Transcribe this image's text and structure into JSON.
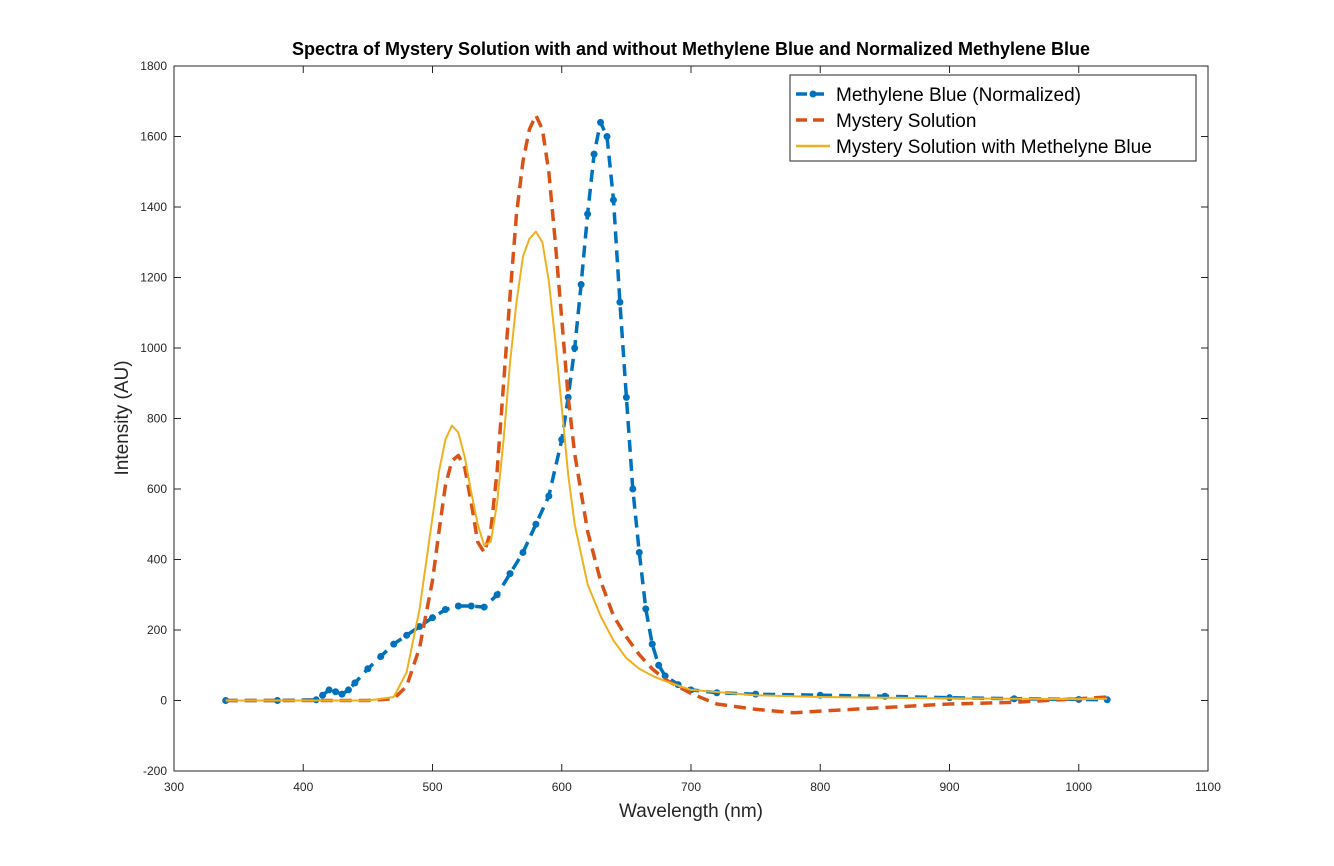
{
  "chart_data": {
    "type": "line",
    "title": "Spectra of Mystery Solution with and without Methylene Blue and Normalized Methylene Blue",
    "xlabel": "Wavelength (nm)",
    "ylabel": "Intensity (AU)",
    "xlim": [
      300,
      1100
    ],
    "ylim": [
      -200,
      1800
    ],
    "xticks": [
      "300",
      "400",
      "500",
      "600",
      "700",
      "800",
      "900",
      "1000",
      "1100"
    ],
    "yticks": [
      "-200",
      "0",
      "200",
      "400",
      "600",
      "800",
      "1000",
      "1200",
      "1400",
      "1600",
      "1800"
    ],
    "grid": false,
    "legend_position": "top-right",
    "series": [
      {
        "name": "Methylene Blue (Normalized)",
        "color": "#0072BD",
        "style": "dashed-dot-markers",
        "x": [
          340,
          380,
          410,
          415,
          420,
          425,
          430,
          435,
          440,
          450,
          460,
          470,
          480,
          490,
          500,
          510,
          520,
          530,
          540,
          550,
          560,
          570,
          580,
          590,
          600,
          605,
          610,
          615,
          620,
          625,
          630,
          635,
          640,
          645,
          650,
          655,
          660,
          665,
          670,
          675,
          680,
          690,
          700,
          720,
          750,
          800,
          850,
          900,
          950,
          1000,
          1022
        ],
        "y": [
          0,
          0,
          2,
          15,
          30,
          25,
          18,
          30,
          50,
          90,
          125,
          160,
          185,
          210,
          235,
          258,
          268,
          268,
          265,
          300,
          360,
          420,
          500,
          580,
          740,
          860,
          1000,
          1180,
          1380,
          1550,
          1640,
          1600,
          1420,
          1130,
          860,
          600,
          420,
          260,
          160,
          100,
          70,
          45,
          30,
          22,
          18,
          15,
          12,
          8,
          5,
          3,
          2
        ]
      },
      {
        "name": "Mystery Solution",
        "color": "#D95319",
        "style": "dashed",
        "x": [
          340,
          400,
          450,
          470,
          480,
          490,
          500,
          505,
          510,
          515,
          520,
          525,
          530,
          535,
          540,
          545,
          550,
          555,
          560,
          565,
          570,
          575,
          580,
          585,
          590,
          595,
          600,
          605,
          610,
          620,
          630,
          640,
          650,
          660,
          670,
          680,
          700,
          720,
          750,
          780,
          800,
          850,
          900,
          950,
          1000,
          1022
        ],
        "y": [
          0,
          0,
          0,
          5,
          40,
          150,
          340,
          480,
          610,
          680,
          695,
          660,
          560,
          450,
          420,
          480,
          650,
          900,
          1150,
          1380,
          1530,
          1620,
          1660,
          1620,
          1500,
          1300,
          1080,
          860,
          700,
          480,
          340,
          240,
          180,
          130,
          90,
          60,
          20,
          -10,
          -25,
          -35,
          -30,
          -20,
          -10,
          -5,
          5,
          10
        ]
      },
      {
        "name": "Mystery Solution with Methelyne Blue",
        "color": "#EDB120",
        "style": "solid",
        "x": [
          340,
          400,
          450,
          470,
          480,
          490,
          500,
          505,
          510,
          515,
          520,
          525,
          530,
          535,
          540,
          545,
          550,
          555,
          560,
          565,
          570,
          575,
          580,
          585,
          590,
          595,
          600,
          605,
          610,
          620,
          630,
          640,
          650,
          660,
          670,
          680,
          700,
          750,
          800,
          850,
          900,
          950,
          1000,
          1022
        ],
        "y": [
          0,
          0,
          0,
          10,
          80,
          260,
          520,
          650,
          740,
          780,
          760,
          690,
          590,
          500,
          440,
          450,
          560,
          740,
          960,
          1130,
          1260,
          1310,
          1330,
          1300,
          1190,
          1020,
          830,
          640,
          500,
          330,
          240,
          170,
          120,
          90,
          70,
          55,
          30,
          15,
          10,
          8,
          6,
          5,
          4,
          5
        ]
      }
    ]
  }
}
